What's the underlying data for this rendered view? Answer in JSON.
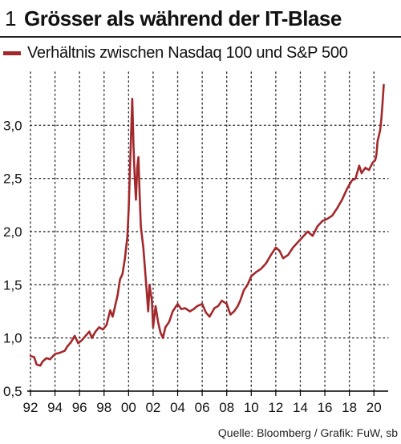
{
  "header": {
    "figure_number": "1",
    "title": "Grösser als während der IT-Blase"
  },
  "source": "Quelle: Bloomberg / Grafik: FuW, sb",
  "colors": {
    "series": "#a3282b",
    "grid": "#333333",
    "axis": "#000000"
  },
  "chart_data": {
    "type": "line",
    "title": "Grösser als während der IT-Blase",
    "xlabel": "",
    "ylabel": "",
    "xlim": [
      1992.0,
      2020.9
    ],
    "ylim": [
      0.5,
      3.5
    ],
    "y_ticks": [
      0.5,
      1.0,
      1.5,
      2.0,
      2.5,
      3.0
    ],
    "y_tick_labels": [
      "0,5",
      "1,0",
      "1,5",
      "2,0",
      "2,5",
      "3,0"
    ],
    "x_ticks": [
      1992,
      1994,
      1996,
      1998,
      2000,
      2002,
      2004,
      2006,
      2008,
      2010,
      2012,
      2014,
      2016,
      2018,
      2020
    ],
    "x_tick_labels": [
      "92",
      "94",
      "96",
      "98",
      "00",
      "02",
      "04",
      "06",
      "08",
      "10",
      "12",
      "14",
      "16",
      "18",
      "20"
    ],
    "grid": true,
    "legend_position": "top-left",
    "series": [
      {
        "name": "Verhältnis zwischen Nasdaq 100 und S&P 500",
        "x": [
          1992.0,
          1992.3,
          1992.5,
          1992.8,
          1993.0,
          1993.3,
          1993.6,
          1994.0,
          1994.4,
          1994.8,
          1995.0,
          1995.3,
          1995.6,
          1995.9,
          1996.2,
          1996.5,
          1996.8,
          1997.0,
          1997.3,
          1997.6,
          1997.9,
          1998.2,
          1998.5,
          1998.7,
          1998.9,
          1999.1,
          1999.3,
          1999.5,
          1999.7,
          1999.9,
          2000.0,
          2000.1,
          2000.2,
          2000.3,
          2000.4,
          2000.5,
          2000.6,
          2000.7,
          2000.8,
          2000.9,
          2001.0,
          2001.2,
          2001.4,
          2001.6,
          2001.7,
          2001.9,
          2002.0,
          2002.2,
          2002.4,
          2002.6,
          2002.8,
          2003.0,
          2003.3,
          2003.6,
          2004.0,
          2004.3,
          2004.6,
          2005.0,
          2005.3,
          2005.6,
          2006.0,
          2006.3,
          2006.6,
          2007.0,
          2007.3,
          2007.6,
          2008.0,
          2008.3,
          2008.6,
          2008.9,
          2009.1,
          2009.4,
          2009.7,
          2010.0,
          2010.4,
          2010.8,
          2011.2,
          2011.6,
          2012.0,
          2012.3,
          2012.6,
          2013.0,
          2013.4,
          2013.8,
          2014.2,
          2014.6,
          2015.0,
          2015.4,
          2015.8,
          2016.2,
          2016.6,
          2017.0,
          2017.4,
          2017.8,
          2018.2,
          2018.5,
          2018.8,
          2019.0,
          2019.3,
          2019.6,
          2019.9,
          2020.1,
          2020.2,
          2020.3,
          2020.5,
          2020.6,
          2020.7,
          2020.8
        ],
        "values": [
          0.83,
          0.82,
          0.75,
          0.74,
          0.78,
          0.81,
          0.8,
          0.85,
          0.86,
          0.88,
          0.92,
          0.96,
          1.02,
          0.95,
          0.98,
          1.02,
          1.06,
          1.0,
          1.06,
          1.1,
          1.08,
          1.12,
          1.26,
          1.2,
          1.3,
          1.4,
          1.55,
          1.6,
          1.75,
          1.95,
          2.2,
          2.55,
          2.9,
          3.25,
          2.8,
          2.5,
          2.3,
          2.6,
          2.7,
          2.35,
          2.05,
          1.85,
          1.55,
          1.25,
          1.5,
          1.35,
          1.1,
          1.3,
          1.15,
          1.05,
          1.0,
          1.1,
          1.15,
          1.25,
          1.32,
          1.27,
          1.28,
          1.25,
          1.27,
          1.3,
          1.32,
          1.24,
          1.2,
          1.28,
          1.3,
          1.35,
          1.32,
          1.22,
          1.25,
          1.3,
          1.35,
          1.45,
          1.5,
          1.58,
          1.62,
          1.65,
          1.7,
          1.78,
          1.85,
          1.82,
          1.75,
          1.78,
          1.85,
          1.9,
          1.95,
          2.0,
          1.96,
          2.05,
          2.1,
          2.12,
          2.15,
          2.22,
          2.3,
          2.4,
          2.48,
          2.5,
          2.62,
          2.55,
          2.6,
          2.58,
          2.65,
          2.67,
          2.72,
          2.85,
          2.95,
          3.05,
          3.2,
          3.38
        ]
      }
    ]
  }
}
